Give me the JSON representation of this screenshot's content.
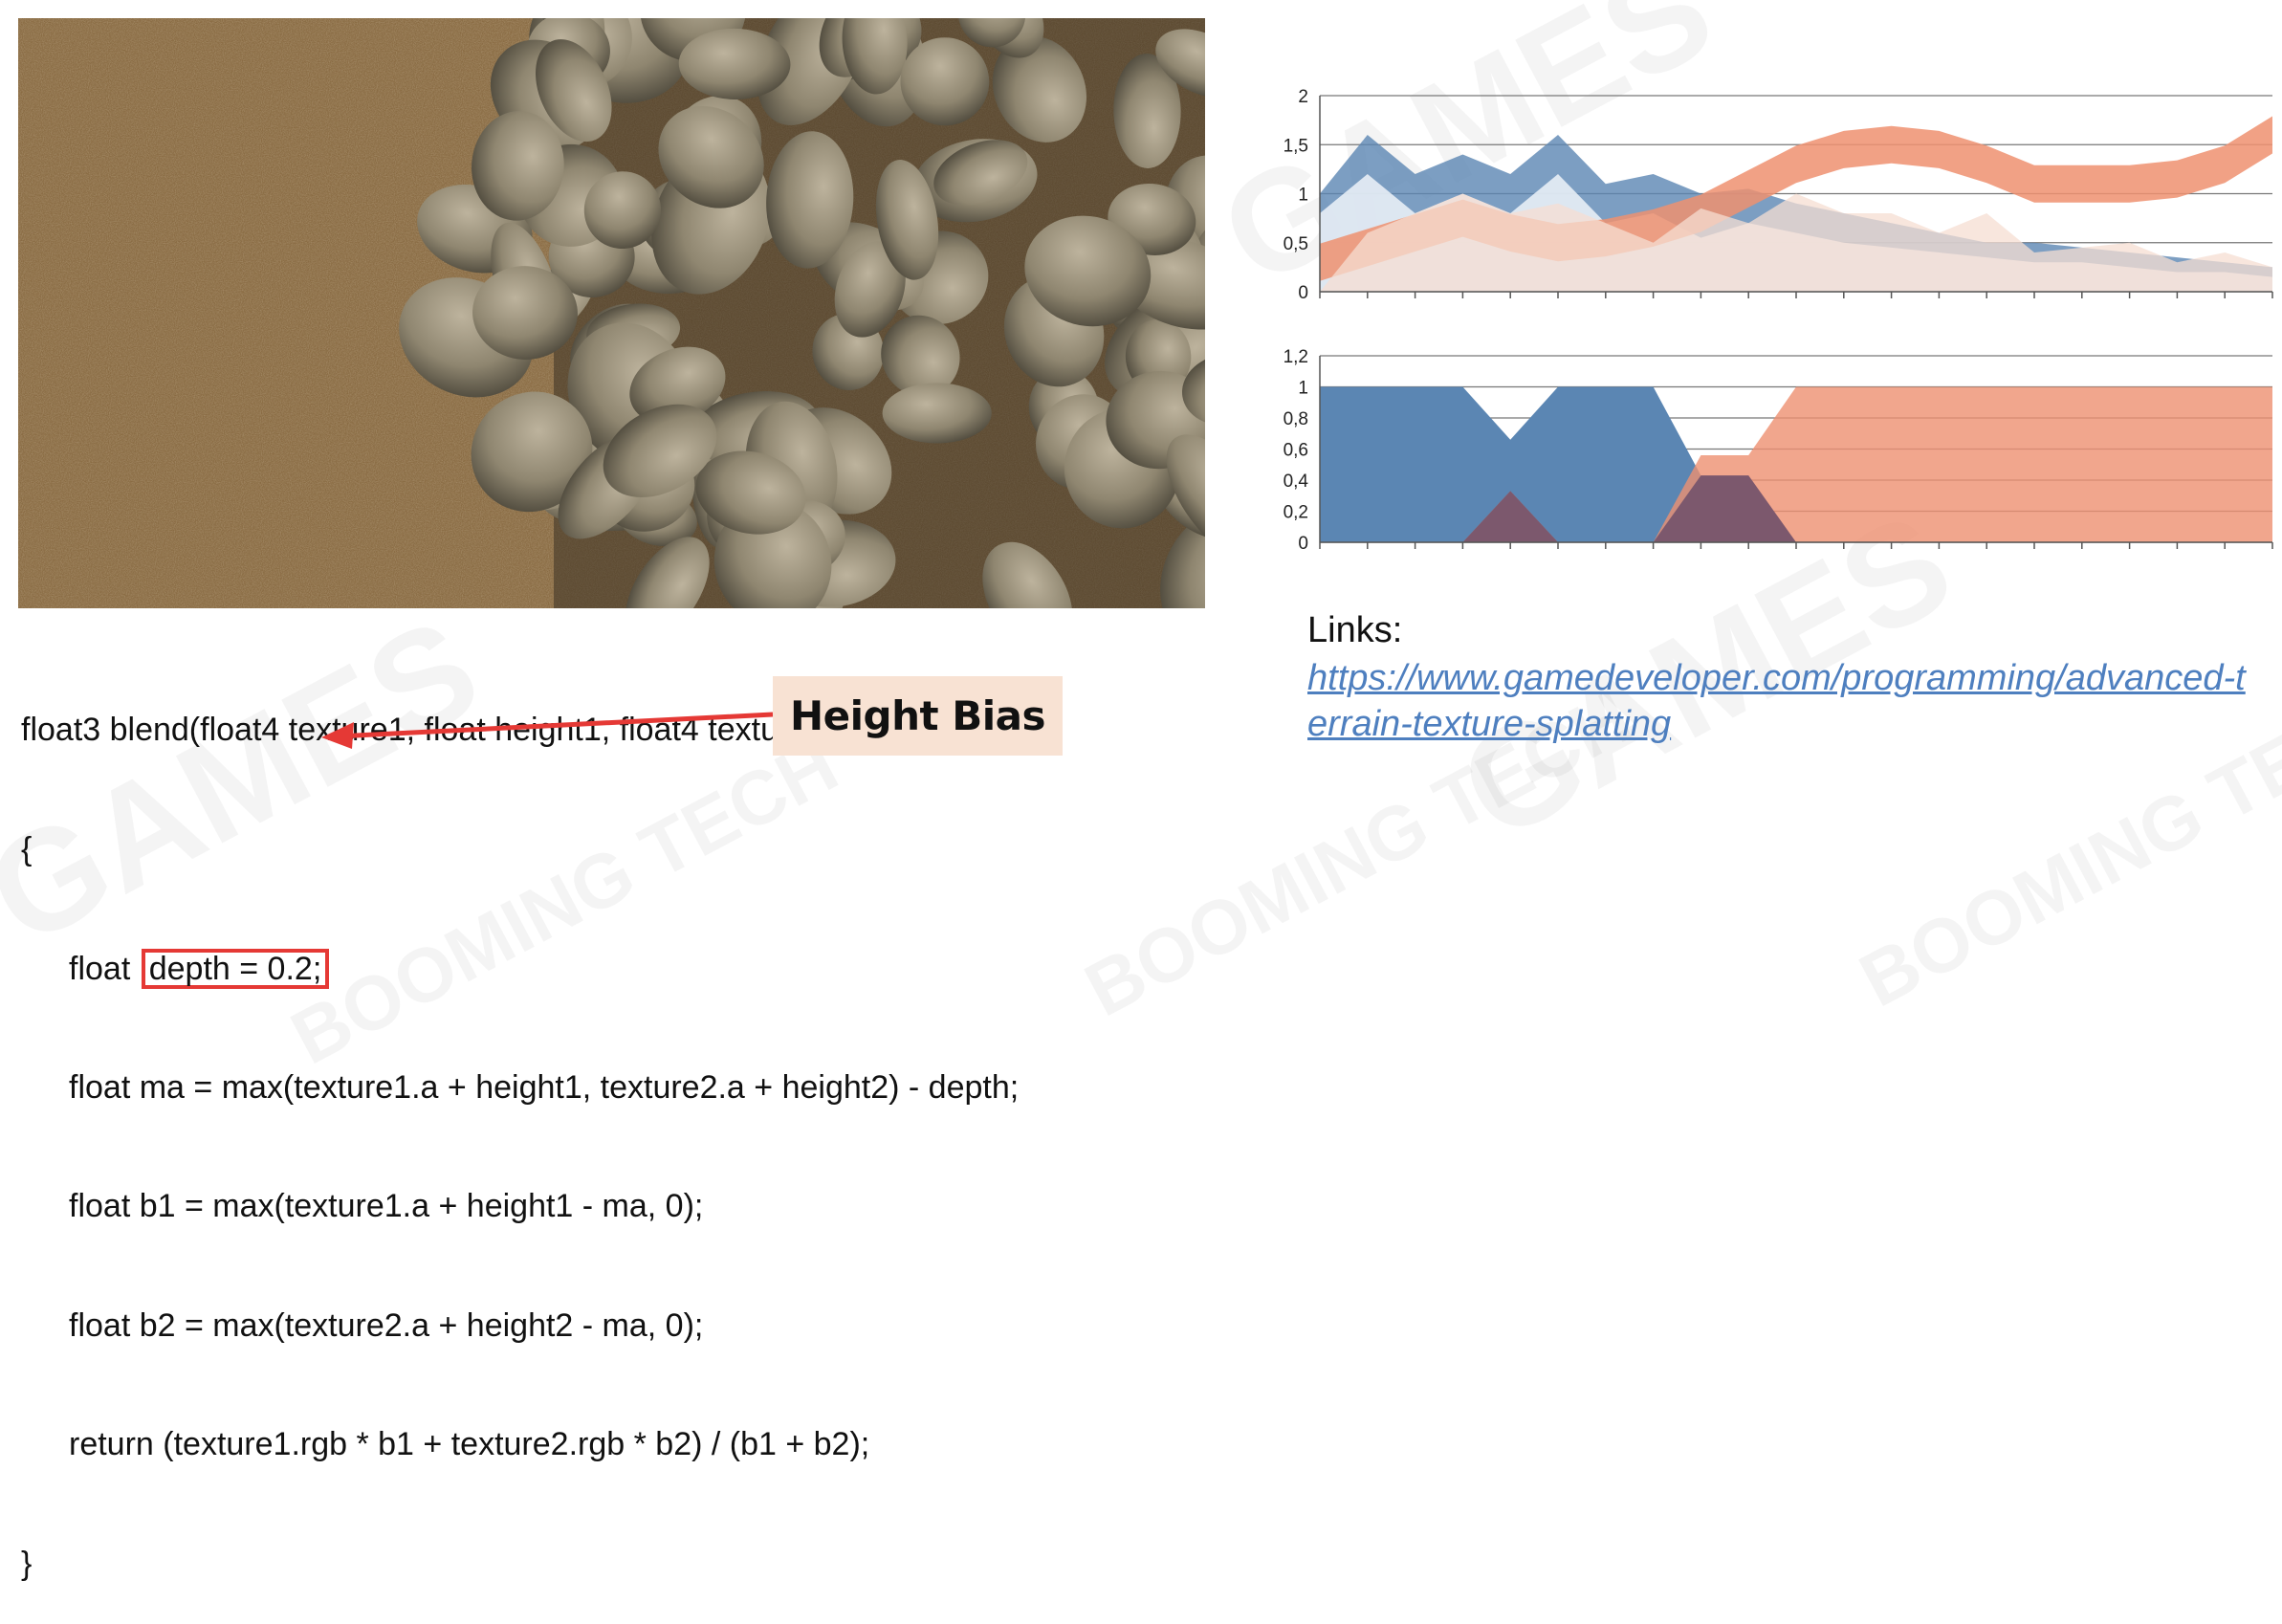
{
  "code": {
    "signature": "float3 blend(float4 texture1, float height1, float4 texture2, float height2)",
    "open_brace": "{",
    "line1_prefix": "float ",
    "line1_highlight": "depth = 0.2;",
    "line2": "float ma = max(texture1.a + height1, texture2.a + height2) - depth;",
    "line3": "float b1 = max(texture1.a + height1 - ma, 0);",
    "line4": "float b2 = max(texture2.a + height2 - ma, 0);",
    "line5": "return (texture1.rgb * b1 + texture2.rgb * b2) / (b1 + b2);",
    "close_brace": "}"
  },
  "annotation": {
    "label": "Height Bias",
    "box_color": "#e53935",
    "label_bg": "#f8e2d3"
  },
  "links": {
    "label": "Links:",
    "url": "https://www.gamedeveloper.com/programming/advanced-terrain-texture-splatting",
    "url_color": "#4e7fbf"
  },
  "watermarks": [
    "GAMES",
    "BOOMING TECH"
  ],
  "chart_data": [
    {
      "type": "area",
      "title": "",
      "xlabel": "",
      "ylabel": "",
      "ylim": [
        0,
        2
      ],
      "yticks": [
        "0",
        "0,5",
        "1",
        "1,5",
        "2"
      ],
      "ytick_values": [
        0,
        0.5,
        1,
        1.5,
        2
      ],
      "grid": true,
      "x": [
        0,
        1,
        2,
        3,
        4,
        5,
        6,
        7,
        8,
        9,
        10,
        11,
        12,
        13,
        14,
        15,
        16,
        17,
        18,
        19,
        20
      ],
      "series": [
        {
          "values": [
            1.0,
            1.6,
            1.2,
            1.4,
            1.2,
            1.6,
            1.1,
            1.2,
            1.0,
            1.05,
            0.9,
            0.8,
            0.7,
            0.6,
            0.5,
            0.5,
            0.45,
            0.4,
            0.35,
            0.3,
            0.25
          ],
          "color": "#5b86b3",
          "opacity": 0.8
        },
        {
          "values": [
            0.8,
            1.2,
            0.8,
            1.0,
            0.8,
            1.2,
            0.7,
            0.8,
            0.55,
            0.7,
            0.6,
            0.5,
            0.45,
            0.4,
            0.35,
            0.3,
            0.3,
            0.25,
            0.2,
            0.2,
            0.15
          ],
          "color": "#e8eef6",
          "opacity": 0.9
        },
        {
          "type": "band",
          "center": [
            0.3,
            0.45,
            0.6,
            0.75,
            0.6,
            0.5,
            0.55,
            0.65,
            0.8,
            1.05,
            1.3,
            1.45,
            1.5,
            1.45,
            1.3,
            1.1,
            1.1,
            1.1,
            1.15,
            1.3,
            1.6
          ],
          "width": 0.38,
          "color": "#ee9070",
          "opacity": 0.85
        },
        {
          "values": [
            0.0,
            0.6,
            0.8,
            1.0,
            0.8,
            0.9,
            0.7,
            0.5,
            0.85,
            0.7,
            1.0,
            0.8,
            0.8,
            0.6,
            0.8,
            0.4,
            0.45,
            0.5,
            0.3,
            0.4,
            0.25
          ],
          "color": "#f6ddd2",
          "opacity": 0.75
        }
      ]
    },
    {
      "type": "area",
      "title": "",
      "xlabel": "",
      "ylabel": "",
      "ylim": [
        0,
        1.2
      ],
      "yticks": [
        "0",
        "0,2",
        "0,4",
        "0,6",
        "0,8",
        "1",
        "1,2"
      ],
      "ytick_values": [
        0,
        0.2,
        0.4,
        0.6,
        0.8,
        1.0,
        1.2
      ],
      "grid": true,
      "x": [
        0,
        1,
        2,
        3,
        4,
        5,
        6,
        7,
        8,
        9,
        10,
        11,
        12,
        13,
        14,
        15,
        16,
        17,
        18,
        19,
        20
      ],
      "series": [
        {
          "values": [
            1,
            1,
            1,
            1,
            0.66,
            1,
            1,
            1,
            0.43,
            0.43,
            0,
            0,
            0,
            0,
            0,
            0,
            0,
            0,
            0,
            0,
            0
          ],
          "color": "#5b86b3",
          "opacity": 1
        },
        {
          "values": [
            0,
            0,
            0,
            0,
            0.33,
            0,
            0,
            0,
            0.56,
            0.56,
            1,
            1,
            1,
            1,
            1,
            1,
            1,
            1,
            1,
            1,
            1
          ],
          "color": "#ee9070",
          "opacity": 0.8
        },
        {
          "values": [
            0,
            0,
            0,
            0,
            0.33,
            0,
            0,
            0,
            0.43,
            0.43,
            0,
            0,
            0,
            0,
            0,
            0,
            0,
            0,
            0,
            0,
            0
          ],
          "color": "#6d4f6a",
          "opacity": 0.85
        }
      ]
    }
  ]
}
